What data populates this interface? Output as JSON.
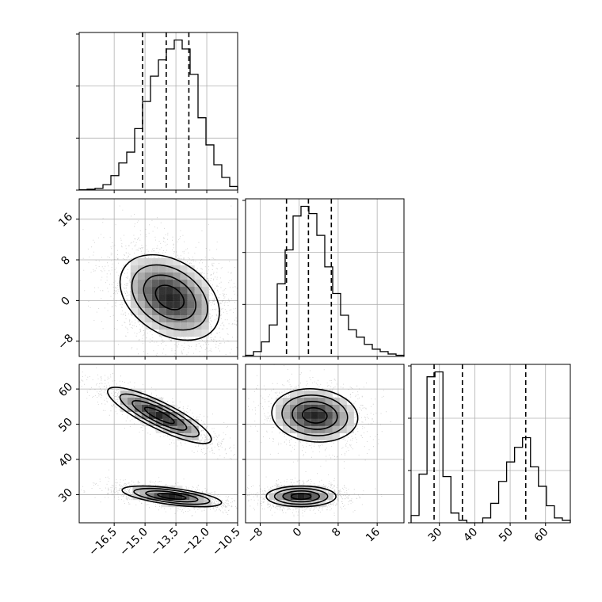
{
  "chart_data": {
    "type": "corner",
    "colors": {
      "line": "#000000",
      "grid": "#b0b0b0",
      "points": "#6e6e6e"
    },
    "panels": [
      {
        "id": "hist-x",
        "type": "histogram",
        "variable": "x",
        "xlim": [
          -18.2,
          -10.5
        ],
        "bin_edges": [
          -18.2,
          -17.815,
          -17.43,
          -17.045,
          -16.66,
          -16.275,
          -15.89,
          -15.505,
          -15.12,
          -14.735,
          -14.35,
          -13.965,
          -13.58,
          -13.195,
          -12.81,
          -12.425,
          -12.04,
          -11.655,
          -11.27,
          -10.885,
          -10.5
        ],
        "counts": [
          0.2,
          0.5,
          1,
          3,
          8,
          15,
          21,
          34,
          49,
          63,
          72,
          78,
          83,
          78,
          64,
          40,
          25,
          14,
          7,
          2
        ],
        "quantiles": [
          -15.12,
          -13.97,
          -12.87
        ],
        "grid": true
      },
      {
        "id": "hist-y",
        "type": "histogram",
        "variable": "y",
        "xlim": [
          -11,
          21.5
        ],
        "bin_edges": [
          -11,
          -9.375,
          -7.75,
          -6.125,
          -4.5,
          -2.875,
          -1.25,
          0.375,
          2,
          3.625,
          5.25,
          6.875,
          8.5,
          10.125,
          11.75,
          13.375,
          15,
          16.625,
          18.25,
          19.875,
          21.5
        ],
        "counts": [
          0.5,
          2,
          6,
          13,
          30,
          44,
          58,
          62,
          59,
          50,
          37,
          26,
          17,
          11,
          8,
          5,
          3,
          2,
          1,
          0.5
        ],
        "quantiles": [
          -2.6,
          1.9,
          6.6
        ],
        "grid": true
      },
      {
        "id": "hist-z",
        "type": "histogram",
        "variable": "z",
        "xlim": [
          22,
          67
        ],
        "bin_edges": [
          22,
          24.25,
          26.5,
          28.75,
          31,
          33.25,
          35.5,
          37.75,
          40,
          42.25,
          44.5,
          46.75,
          49,
          51.25,
          53.5,
          55.75,
          58,
          60.25,
          62.5,
          64.75,
          67
        ],
        "counts": [
          3,
          20,
          60,
          62,
          19,
          4,
          1,
          0,
          0,
          2,
          8,
          17,
          25,
          31,
          35,
          23,
          15,
          7,
          2,
          1
        ],
        "quantiles": [
          28.5,
          36.5,
          54.4
        ],
        "grid": true
      },
      {
        "id": "scatter-y-x",
        "type": "2d-density",
        "x_variable": "x",
        "y_variable": "y",
        "xlim": [
          -18.2,
          -10.5
        ],
        "ylim": [
          -11,
          20
        ],
        "modes": [
          {
            "center": [
              -13.8,
              0.6
            ],
            "sigma": [
              1.15,
              4.0
            ],
            "rho": -0.35,
            "weight": 1.0
          }
        ],
        "grid": true
      },
      {
        "id": "scatter-z-x",
        "type": "2d-density",
        "x_variable": "x",
        "y_variable": "z",
        "xlim": [
          -18.2,
          -10.5
        ],
        "ylim": [
          22,
          67
        ],
        "modes": [
          {
            "center": [
              -14.3,
              52.5
            ],
            "sigma": [
              1.2,
              3.8
            ],
            "rho": -0.85,
            "weight": 0.45
          },
          {
            "center": [
              -13.7,
              29.5
            ],
            "sigma": [
              1.15,
              1.4
            ],
            "rho": -0.6,
            "weight": 0.55
          }
        ],
        "grid": true
      },
      {
        "id": "scatter-z-y",
        "type": "2d-density",
        "x_variable": "y",
        "y_variable": "z",
        "xlim": [
          -11,
          21.5
        ],
        "ylim": [
          22,
          67
        ],
        "modes": [
          {
            "center": [
              3.2,
              52.5
            ],
            "sigma": [
              4.2,
              3.6
            ],
            "rho": -0.1,
            "weight": 0.45
          },
          {
            "center": [
              0.4,
              29.5
            ],
            "sigma": [
              3.4,
              1.4
            ],
            "rho": 0.0,
            "weight": 0.55
          }
        ],
        "grid": true
      }
    ],
    "axis_ticks": {
      "x_bottom": [
        "−16.5",
        "−15.0",
        "−13.5",
        "−12.0",
        "−10.5"
      ],
      "y_bottom": [
        "−8",
        "0",
        "8",
        "16"
      ],
      "z_bottom": [
        "30",
        "40",
        "50",
        "60"
      ],
      "y_left": [
        "−8",
        "0",
        "8",
        "16"
      ],
      "z_left": [
        "30",
        "40",
        "50",
        "60"
      ]
    }
  }
}
